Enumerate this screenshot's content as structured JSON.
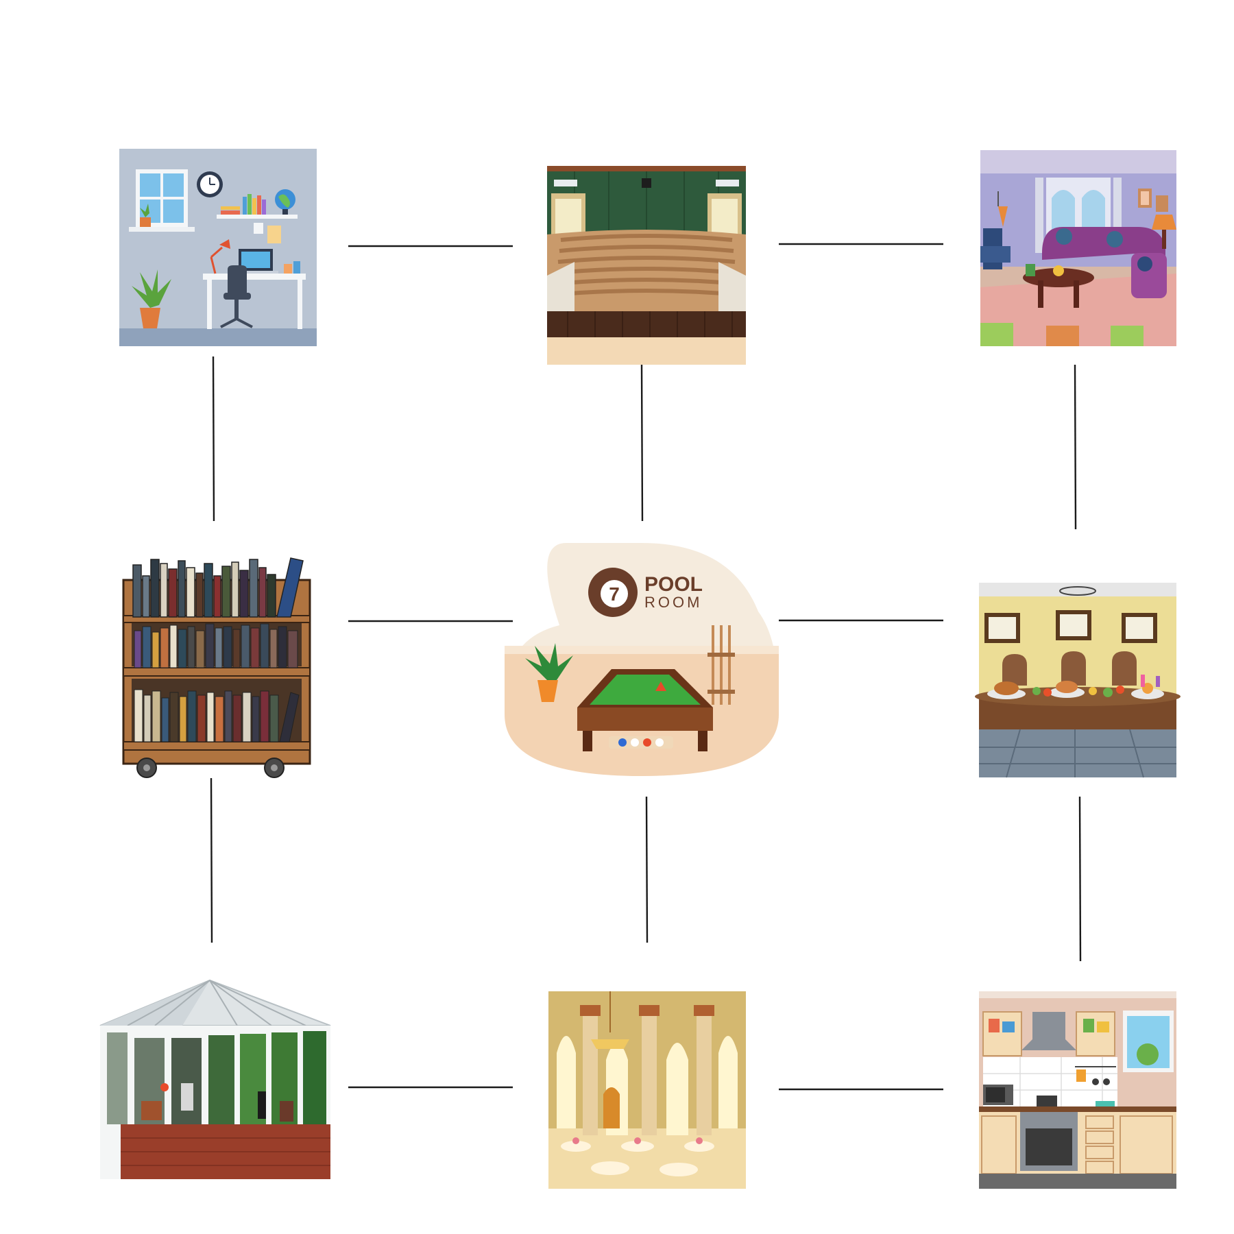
{
  "diagram": {
    "title": "",
    "rooms": [
      {
        "id": "study",
        "name": "study-room-illustration"
      },
      {
        "id": "auditorium",
        "name": "auditorium-illustration"
      },
      {
        "id": "lounge",
        "name": "lounge-illustration"
      },
      {
        "id": "library",
        "name": "library-bookcase-illustration"
      },
      {
        "id": "poolroom",
        "name": "pool-room-illustration",
        "logo_number": "7",
        "logo_word1": "POOL",
        "logo_word2": "ROOM"
      },
      {
        "id": "dining",
        "name": "dining-hall-illustration"
      },
      {
        "id": "conservatory",
        "name": "conservatory-illustration"
      },
      {
        "id": "ballroom",
        "name": "ballroom-illustration"
      },
      {
        "id": "kitchen",
        "name": "kitchen-illustration"
      }
    ],
    "connections": [
      [
        "study",
        "auditorium"
      ],
      [
        "auditorium",
        "lounge"
      ],
      [
        "library",
        "poolroom"
      ],
      [
        "poolroom",
        "dining"
      ],
      [
        "conservatory",
        "ballroom"
      ],
      [
        "ballroom",
        "kitchen"
      ],
      [
        "study",
        "library"
      ],
      [
        "library",
        "conservatory"
      ],
      [
        "auditorium",
        "poolroom"
      ],
      [
        "poolroom",
        "ballroom"
      ],
      [
        "lounge",
        "dining"
      ],
      [
        "dining",
        "kitchen"
      ]
    ]
  }
}
